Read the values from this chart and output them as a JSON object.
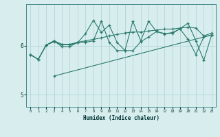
{
  "xlabel": "Humidex (Indice chaleur)",
  "ylabel": "",
  "bg_color": "#d8eeee",
  "line_color": "#2a7a6a",
  "grid_color": "#b8d8d8",
  "xlim": [
    -0.5,
    23.5
  ],
  "ylim": [
    4.75,
    6.85
  ],
  "yticks": [
    5,
    6
  ],
  "xticks": [
    0,
    1,
    2,
    3,
    4,
    5,
    6,
    7,
    8,
    9,
    10,
    11,
    12,
    13,
    14,
    15,
    16,
    17,
    18,
    19,
    20,
    21,
    22,
    23
  ],
  "line1_x": [
    0,
    1,
    2,
    3,
    4,
    5,
    6,
    7,
    8,
    9,
    10,
    11,
    12,
    13,
    14,
    15,
    16,
    17,
    18,
    19,
    20,
    21,
    22,
    23
  ],
  "line1_y": [
    5.82,
    5.72,
    6.01,
    6.1,
    6.03,
    6.03,
    6.07,
    6.1,
    6.13,
    6.16,
    6.2,
    6.23,
    6.26,
    6.28,
    6.28,
    6.3,
    6.32,
    6.34,
    6.34,
    6.36,
    6.38,
    6.36,
    6.2,
    6.26
  ],
  "line2_x": [
    0,
    1,
    2,
    3,
    4,
    5,
    6,
    7,
    8,
    9,
    10,
    11,
    12,
    13,
    14,
    15,
    16,
    17,
    18,
    19,
    20,
    21,
    22,
    23
  ],
  "line2_y": [
    5.82,
    5.72,
    6.01,
    6.08,
    6.02,
    6.02,
    6.06,
    6.25,
    6.52,
    6.27,
    6.42,
    6.07,
    5.9,
    5.9,
    6.08,
    6.18,
    6.29,
    6.24,
    6.27,
    6.34,
    6.13,
    5.82,
    6.18,
    6.22
  ],
  "line3_x": [
    0,
    1,
    2,
    3,
    4,
    5,
    6,
    7,
    8,
    9,
    10,
    11,
    12,
    13,
    14,
    15,
    16,
    17,
    18,
    19,
    20,
    21,
    22,
    23
  ],
  "line3_y": [
    5.82,
    5.72,
    6.01,
    6.1,
    5.98,
    5.98,
    6.07,
    6.07,
    6.1,
    6.5,
    6.07,
    5.9,
    5.9,
    6.5,
    6.1,
    6.5,
    6.29,
    6.25,
    6.25,
    6.35,
    6.46,
    6.1,
    5.7,
    6.22
  ],
  "line4_x": [
    3,
    23
  ],
  "line4_y": [
    5.38,
    6.22
  ]
}
